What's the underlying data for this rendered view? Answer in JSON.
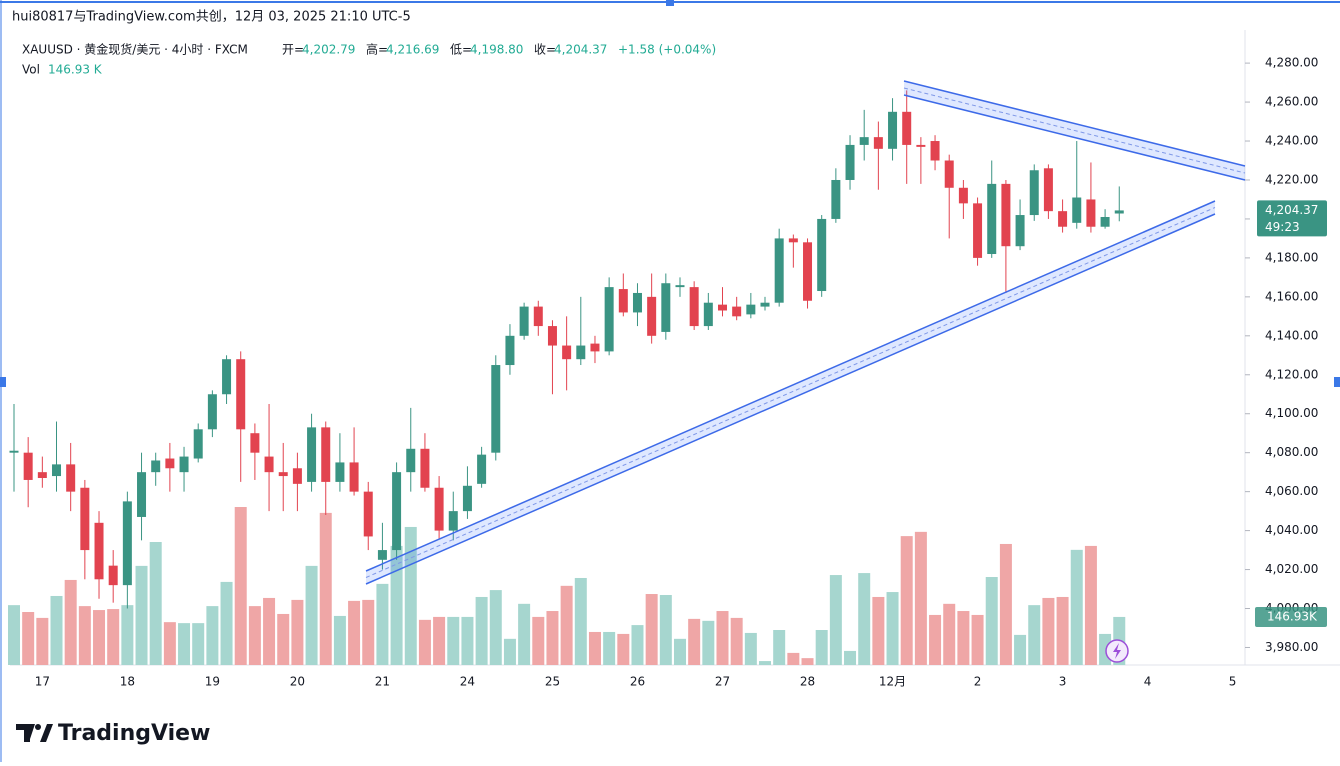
{
  "header": {
    "attribution": "hui80817与TradingView.com共创，12月 03, 2025 21:10 UTC-5"
  },
  "legend": {
    "symbol": "XAUUSD · 黄金现货/美元 · 4小时 · FXCM",
    "open_label": "开=",
    "open": "4,202.79",
    "high_label": "高=",
    "high": "4,216.69",
    "low_label": "低=",
    "low": "4,198.80",
    "close_label": "收=",
    "close": "4,204.37",
    "change": "+1.58 (+0.04%)",
    "vol_label": "Vol",
    "vol": "146.93 K"
  },
  "chart_data": {
    "type": "candlestick",
    "categories": [
      null,
      null,
      "17",
      null,
      null,
      null,
      null,
      null,
      "18",
      null,
      null,
      null,
      null,
      null,
      "19",
      null,
      null,
      null,
      null,
      null,
      "20",
      null,
      null,
      null,
      null,
      null,
      "21",
      null,
      null,
      null,
      null,
      null,
      "24",
      null,
      null,
      null,
      null,
      null,
      "25",
      null,
      null,
      null,
      null,
      null,
      "26",
      null,
      null,
      null,
      null,
      null,
      "27",
      null,
      null,
      null,
      null,
      null,
      "28",
      null,
      null,
      null,
      null,
      null,
      "12月",
      null,
      null,
      null,
      null,
      null,
      "2",
      null,
      null,
      null,
      null,
      null,
      "3",
      null,
      null,
      null,
      null,
      null,
      "4",
      null,
      null,
      null,
      null,
      null,
      "5"
    ],
    "open": [
      4080,
      4080,
      4070,
      4068,
      4074,
      4062,
      4044,
      4022,
      4012,
      4047,
      4070,
      4077,
      4070,
      4077,
      4092,
      4110,
      4128,
      4090,
      4078,
      4070,
      4072,
      4065,
      4093,
      4065,
      4075,
      4060,
      4025,
      4030,
      4070,
      4082,
      4062,
      4040,
      4050,
      4064,
      4080,
      4125,
      4140,
      4155,
      4145,
      4135,
      4128,
      4136,
      4132,
      4164,
      4152,
      4160,
      4142,
      4165,
      4165,
      4145,
      4156,
      4155,
      4151,
      4155,
      4157,
      4190,
      4188,
      4163,
      4200,
      4220,
      4238,
      4242,
      4236,
      4255,
      4238,
      4240,
      4230,
      4216,
      4208,
      4182,
      4218,
      4186,
      4202,
      4226,
      4204,
      4198,
      4210,
      4196,
      4202.79,
      null,
      null,
      null,
      null,
      null,
      null,
      null,
      null
    ],
    "high": [
      4105,
      4088,
      4078,
      4096,
      4085,
      4066,
      4050,
      4030,
      4060,
      4080,
      4080,
      4085,
      4083,
      4095,
      4112,
      4130,
      4132,
      4095,
      4105,
      4085,
      4080,
      4100,
      4096,
      4090,
      4093,
      4065,
      4044,
      4075,
      4103,
      4090,
      4068,
      4060,
      4073,
      4083,
      4130,
      4146,
      4157,
      4158,
      4148,
      4150,
      4160,
      4140,
      4170,
      4172,
      4167,
      4172,
      4172,
      4170,
      4168,
      4162,
      4165,
      4160,
      4162,
      4160,
      4195,
      4192,
      4190,
      4202,
      4226,
      4243,
      4256,
      4250,
      4262,
      4266,
      4242,
      4243,
      4233,
      4220,
      4211,
      4230,
      4220,
      4210,
      4228,
      4228,
      4210,
      4240,
      4229,
      4205,
      4216.69,
      null,
      null,
      null,
      null,
      null,
      null,
      null,
      null
    ],
    "low": [
      4060,
      4052,
      4062,
      4060,
      4050,
      4015,
      4005,
      4003,
      4000,
      4035,
      4063,
      4060,
      4060,
      4075,
      4088,
      4105,
      4065,
      4066,
      4050,
      4050,
      4050,
      4060,
      4048,
      4060,
      4058,
      4030,
      4020,
      4025,
      4060,
      4060,
      4036,
      4035,
      4046,
      4062,
      4076,
      4120,
      4138,
      4140,
      4110,
      4112,
      4125,
      4126,
      4130,
      4150,
      4145,
      4136,
      4138,
      4160,
      4143,
      4143,
      4150,
      4148,
      4149,
      4153,
      4155,
      4175,
      4154,
      4160,
      4198,
      4215,
      4230,
      4215,
      4230,
      4218,
      4218,
      4225,
      4190,
      4200,
      4176,
      4180,
      4162,
      4184,
      4199,
      4200,
      4193,
      4195,
      4193,
      4195,
      4198.8,
      null,
      null,
      null,
      null,
      null,
      null,
      null,
      null
    ],
    "close": [
      4081,
      4066,
      4067,
      4074,
      4060,
      4030,
      4015,
      4012,
      4055,
      4070,
      4076,
      4072,
      4078,
      4092,
      4110,
      4128,
      4092,
      4080,
      4070,
      4068,
      4064,
      4093,
      4065,
      4075,
      4060,
      4037,
      4030,
      4070,
      4082,
      4062,
      4040,
      4050,
      4063,
      4079,
      4125,
      4140,
      4155,
      4145,
      4135,
      4128,
      4135,
      4132,
      4165,
      4152,
      4162,
      4140,
      4167,
      4166,
      4145,
      4157,
      4153,
      4150,
      4156,
      4157,
      4190,
      4188,
      4158,
      4200,
      4220,
      4238,
      4242,
      4236,
      4255,
      4238,
      4237,
      4230,
      4216,
      4208,
      4180,
      4218,
      4186,
      4202,
      4225,
      4204,
      4196,
      4211,
      4196,
      4201,
      4204.37,
      null,
      null,
      null,
      null,
      null,
      null,
      null,
      null
    ],
    "volume": [
      183,
      162,
      144,
      211,
      260,
      180,
      168,
      171,
      183,
      303,
      376,
      131,
      128,
      128,
      180,
      254,
      483,
      180,
      205,
      156,
      199,
      303,
      465,
      150,
      196,
      199,
      248,
      364,
      422,
      138,
      147,
      147,
      147,
      208,
      229,
      80,
      187,
      147,
      165,
      242,
      266,
      101,
      101,
      95,
      122,
      217,
      214,
      80,
      141,
      135,
      165,
      144,
      98,
      12,
      107,
      37,
      21,
      107,
      275,
      43,
      281,
      208,
      223,
      394,
      407,
      153,
      187,
      165,
      153,
      269,
      370,
      92,
      183,
      205,
      208,
      352,
      364,
      95,
      146.93,
      null,
      null,
      null,
      null,
      null,
      null,
      null,
      null
    ],
    "up_color": "#3a9483",
    "down_color": "#e2434f",
    "up_volume_color": "#a6d6cf",
    "down_volume_color": "#efa6a6",
    "ylim": [
      3971,
      4297
    ],
    "yticks": [
      {
        "value": 3980,
        "label": "3,980.00"
      },
      {
        "value": 4000,
        "label": "4,000.00"
      },
      {
        "value": 4020,
        "label": "4,020.00"
      },
      {
        "value": 4040,
        "label": "4,040.00"
      },
      {
        "value": 4060,
        "label": "4,060.00"
      },
      {
        "value": 4080,
        "label": "4,080.00"
      },
      {
        "value": 4100,
        "label": "4,100.00"
      },
      {
        "value": 4120,
        "label": "4,120.00"
      },
      {
        "value": 4140,
        "label": "4,140.00"
      },
      {
        "value": 4160,
        "label": "4,160.00"
      },
      {
        "value": 4180,
        "label": "4,180.00"
      },
      {
        "value": 4200,
        "label": "4,200.00"
      },
      {
        "value": 4220,
        "label": "4,220.00"
      },
      {
        "value": 4240,
        "label": "4,240.00"
      },
      {
        "value": 4260,
        "label": "4,260.00"
      },
      {
        "value": 4280,
        "label": "4,280.00"
      }
    ],
    "grid": false,
    "last_price_label": "4,204.37",
    "countdown": "49:23",
    "volume_label": "146.93K"
  },
  "footer": {
    "logo": "TradingView"
  }
}
